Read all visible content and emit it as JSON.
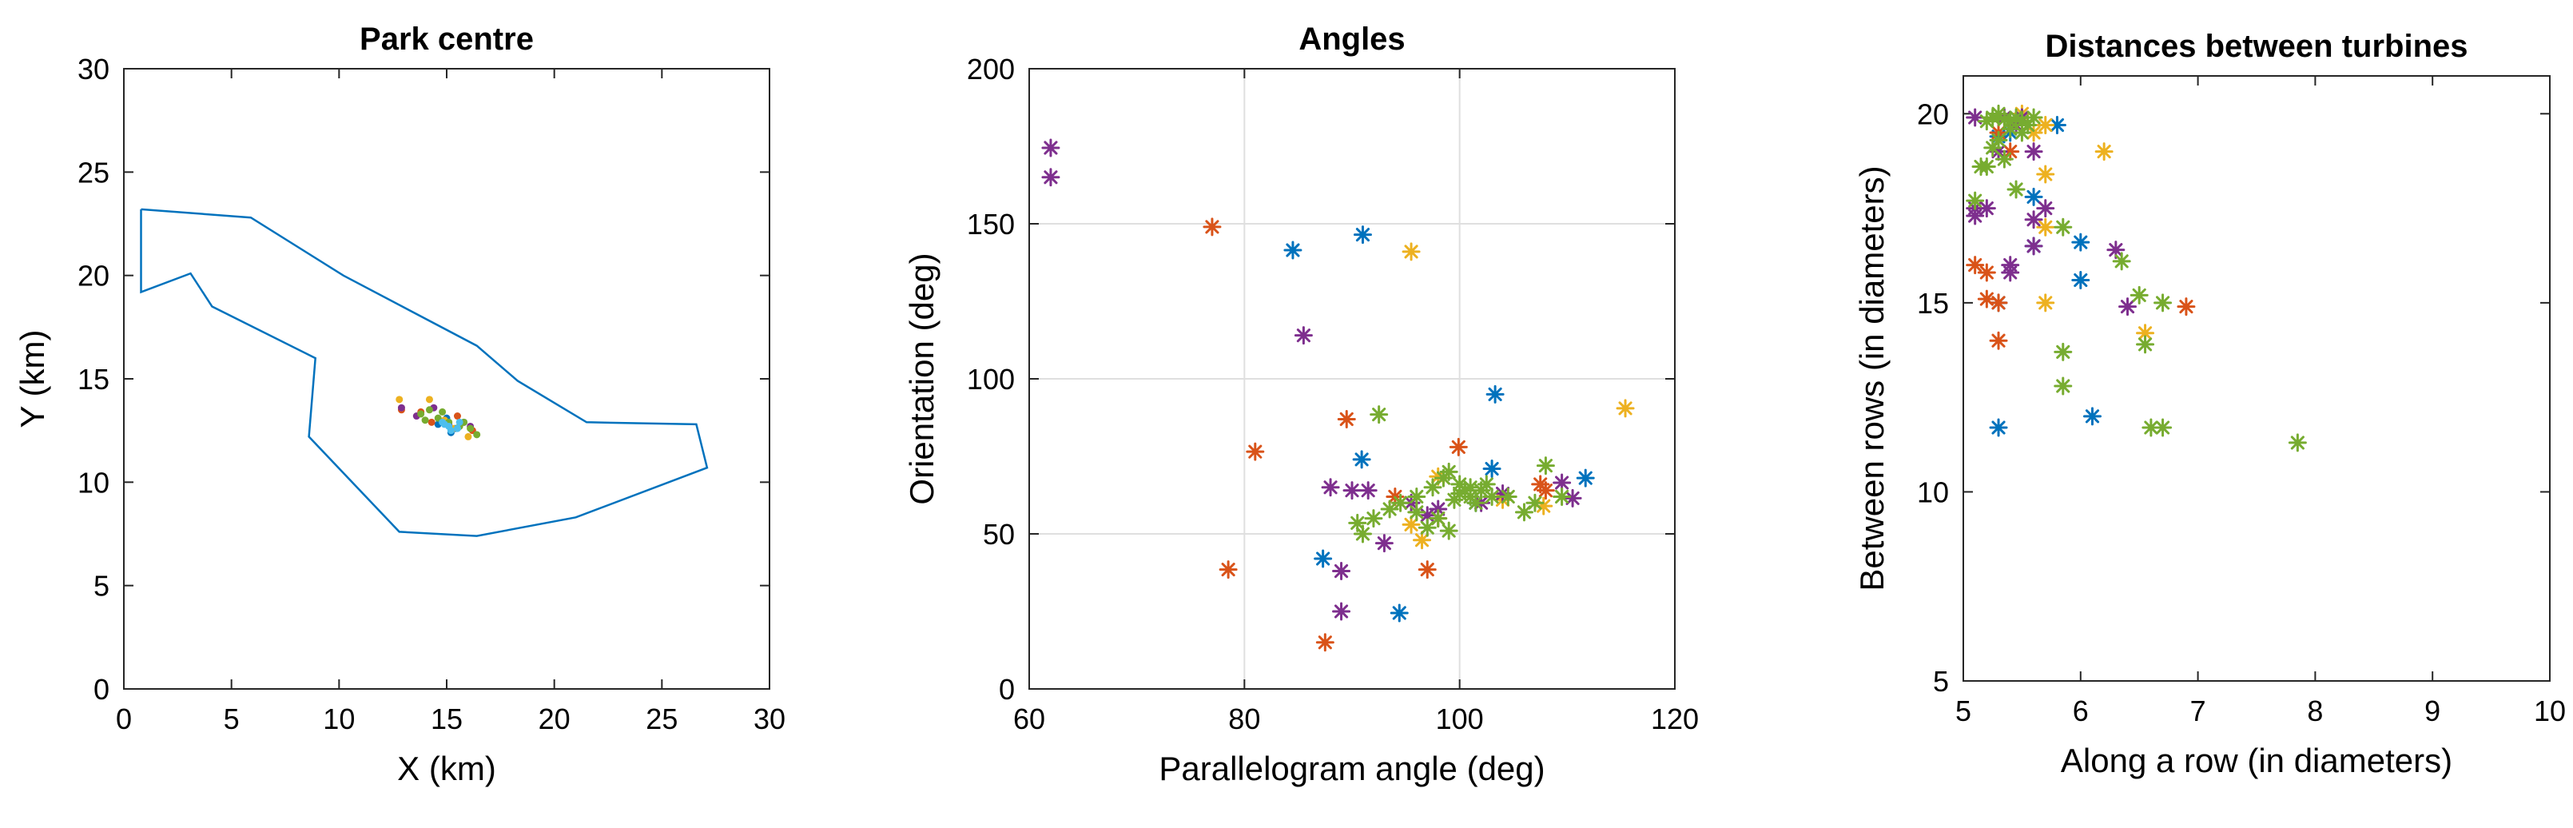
{
  "colors": [
    "#0072BD",
    "#D95319",
    "#EDB120",
    "#7E2F8E",
    "#77AC30",
    "#4DBEEE"
  ],
  "chart_data": [
    {
      "type": "scatter",
      "title": "Park centre",
      "xlabel": "X (km)",
      "ylabel": "Y (km)",
      "xlim": [
        0,
        30
      ],
      "ylim": [
        0,
        30
      ],
      "xticks": [
        0,
        5,
        10,
        15,
        20,
        25,
        30
      ],
      "yticks": [
        0,
        5,
        10,
        15,
        20,
        25,
        30
      ],
      "grid": false,
      "boundary": [
        [
          0.8,
          23.2
        ],
        [
          5.9,
          22.8
        ],
        [
          10.2,
          20.0
        ],
        [
          16.4,
          16.6
        ],
        [
          18.3,
          14.9
        ],
        [
          21.5,
          12.9
        ],
        [
          26.6,
          12.8
        ],
        [
          27.1,
          10.7
        ],
        [
          21.0,
          8.3
        ],
        [
          16.4,
          7.4
        ],
        [
          12.8,
          7.6
        ],
        [
          8.6,
          12.2
        ],
        [
          8.9,
          16.0
        ],
        [
          4.1,
          18.5
        ],
        [
          3.1,
          20.1
        ],
        [
          0.8,
          19.2
        ],
        [
          0.8,
          23.2
        ]
      ],
      "series": [
        {
          "name": "Series 1",
          "marker": "dot",
          "x": [
            14.6,
            15.0,
            15.4,
            15.8,
            15.2
          ],
          "y": [
            12.8,
            13.1,
            12.6,
            12.9,
            12.4
          ]
        },
        {
          "name": "Series 2",
          "marker": "dot",
          "x": [
            12.9,
            14.3,
            15.5,
            16.2,
            13.8
          ],
          "y": [
            13.5,
            12.9,
            13.2,
            12.5,
            13.4
          ]
        },
        {
          "name": "Series 3",
          "marker": "dot",
          "x": [
            12.8,
            14.2,
            15.3,
            16.0,
            14.9
          ],
          "y": [
            14.0,
            14.0,
            12.6,
            12.2,
            13.0
          ]
        },
        {
          "name": "Series 4",
          "marker": "dot",
          "x": [
            13.6,
            14.4,
            15.1,
            16.1,
            12.9
          ],
          "y": [
            13.2,
            13.6,
            12.8,
            12.7,
            13.6
          ]
        },
        {
          "name": "Series 5",
          "marker": "dot",
          "x": [
            13.8,
            14.2,
            14.6,
            15.1,
            15.6,
            16.1,
            16.4,
            14.0,
            14.8,
            15.8
          ],
          "y": [
            13.3,
            13.5,
            13.1,
            12.9,
            12.7,
            12.6,
            12.3,
            13.0,
            13.4,
            12.9
          ]
        },
        {
          "name": "Series 6",
          "marker": "dot",
          "x": [
            14.8,
            15.1,
            15.5,
            15.2,
            14.9,
            15.6
          ],
          "y": [
            12.9,
            12.7,
            12.6,
            12.5,
            12.8,
            12.9
          ]
        }
      ]
    },
    {
      "type": "scatter",
      "title": "Angles",
      "xlabel": "Parallelogram angle (deg)",
      "ylabel": "Orientation (deg)",
      "xlim": [
        60,
        120
      ],
      "ylim": [
        0,
        200
      ],
      "xticks": [
        60,
        80,
        100,
        120
      ],
      "yticks": [
        0,
        50,
        100,
        150,
        200
      ],
      "grid": true,
      "series": [
        {
          "name": "Series 1",
          "marker": "star",
          "x": [
            84.5,
            91.0,
            103.3,
            87.3,
            94.4,
            90.9,
            103.0,
            111.7,
            101.5
          ],
          "y": [
            141.5,
            146.5,
            95.0,
            42.0,
            24.5,
            74.0,
            71.0,
            68.0,
            60.0
          ]
        },
        {
          "name": "Series 2",
          "marker": "star",
          "x": [
            77.0,
            81.0,
            78.5,
            87.5,
            89.5,
            99.9,
            97.0,
            94.0,
            98.0,
            108.0,
            107.5
          ],
          "y": [
            149.0,
            76.5,
            38.5,
            15.0,
            87.0,
            78.0,
            38.5,
            62.0,
            55.0,
            64.0,
            66.0
          ]
        },
        {
          "name": "Series 3",
          "marker": "star",
          "x": [
            95.5,
            115.4,
            107.8,
            96.5,
            104.0,
            95.5,
            98.0
          ],
          "y": [
            141.0,
            90.5,
            59.0,
            48.0,
            61.0,
            53.0,
            68.5
          ]
        },
        {
          "name": "Series 4",
          "marker": "star",
          "x": [
            62.0,
            62.0,
            85.5,
            88.0,
            89.0,
            89.0,
            91.5,
            93.0,
            90.0,
            95.5,
            97.0,
            98.0,
            102.0,
            104.0,
            110.5,
            109.5
          ],
          "y": [
            174.5,
            165.0,
            114.0,
            65.0,
            38.0,
            25.0,
            64.0,
            47.0,
            64.0,
            60.0,
            56.0,
            58.0,
            60.0,
            63.0,
            61.5,
            66.5
          ]
        },
        {
          "name": "Series 5",
          "marker": "star",
          "x": [
            92.5,
            90.5,
            91.0,
            92.0,
            93.5,
            94.5,
            96.0,
            97.5,
            98.5,
            99.0,
            100.0,
            100.5,
            101.0,
            101.5,
            102.0,
            102.5,
            103.0,
            99.5,
            100.0,
            101.0,
            99.0,
            98.0,
            104.5,
            106.0,
            107.0,
            108.0,
            109.5,
            96.0,
            97.0
          ],
          "y": [
            88.5,
            53.5,
            50.0,
            55.0,
            58.0,
            60.0,
            62.0,
            65.0,
            68.0,
            70.0,
            66.0,
            64.0,
            62.0,
            60.0,
            64.0,
            66.0,
            62.0,
            61.0,
            63.0,
            65.0,
            51.0,
            55.0,
            62.0,
            57.0,
            60.0,
            72.0,
            62.0,
            57.0,
            52.0
          ]
        }
      ]
    },
    {
      "type": "scatter",
      "title": "Distances between turbines",
      "xlabel": "Along a row (in diameters)",
      "ylabel": "Between rows (in diameters)",
      "xlim": [
        5,
        10
      ],
      "ylim": [
        5,
        21
      ],
      "xticks": [
        5,
        6,
        7,
        8,
        9,
        10
      ],
      "yticks": [
        5,
        10,
        15,
        20
      ],
      "grid": false,
      "series": [
        {
          "name": "Series 1",
          "marker": "star",
          "x": [
            5.3,
            5.6,
            5.8,
            5.6,
            6.0,
            6.0,
            5.3,
            6.1,
            5.3,
            5.4
          ],
          "y": [
            19.4,
            17.8,
            19.7,
            16.5,
            16.6,
            15.6,
            11.7,
            12.0,
            15.0,
            19.5
          ]
        },
        {
          "name": "Series 2",
          "marker": "star",
          "x": [
            5.1,
            5.2,
            5.3,
            5.3,
            5.2,
            6.9,
            5.3,
            5.4
          ],
          "y": [
            16.0,
            15.8,
            15.0,
            14.0,
            15.1,
            14.9,
            19.5,
            19.0
          ]
        },
        {
          "name": "Series 3",
          "marker": "star",
          "x": [
            5.7,
            5.5,
            5.7,
            5.7,
            5.7,
            5.6,
            6.2,
            6.55
          ],
          "y": [
            19.7,
            20.0,
            18.4,
            17.0,
            15.0,
            19.5,
            19.0,
            14.2
          ]
        },
        {
          "name": "Series 4",
          "marker": "star",
          "x": [
            5.1,
            5.1,
            5.1,
            5.2,
            5.3,
            5.4,
            5.4,
            5.5,
            5.6,
            5.7,
            5.6,
            5.6,
            6.3,
            6.4,
            5.35,
            5.45
          ],
          "y": [
            19.9,
            17.5,
            17.3,
            17.5,
            19.0,
            15.8,
            16.0,
            19.9,
            17.2,
            17.5,
            16.5,
            19.0,
            16.4,
            14.9,
            19.9,
            19.7
          ]
        },
        {
          "name": "Series 5",
          "marker": "star",
          "x": [
            5.2,
            5.25,
            5.3,
            5.35,
            5.4,
            5.45,
            5.5,
            5.55,
            5.6,
            5.4,
            5.1,
            5.15,
            5.25,
            5.3,
            5.35,
            5.45,
            5.5,
            5.85,
            5.85,
            5.85,
            6.5,
            6.55,
            6.6,
            6.35,
            6.7,
            7.85,
            6.7,
            5.2,
            5.5
          ],
          "y": [
            19.8,
            19.9,
            20.0,
            19.85,
            19.8,
            19.9,
            19.8,
            19.7,
            19.9,
            19.6,
            17.7,
            18.6,
            19.1,
            19.3,
            18.8,
            18.0,
            19.5,
            17.0,
            13.7,
            12.8,
            15.2,
            13.9,
            11.7,
            16.1,
            15.0,
            11.3,
            11.7,
            18.6,
            19.8
          ]
        }
      ]
    }
  ]
}
